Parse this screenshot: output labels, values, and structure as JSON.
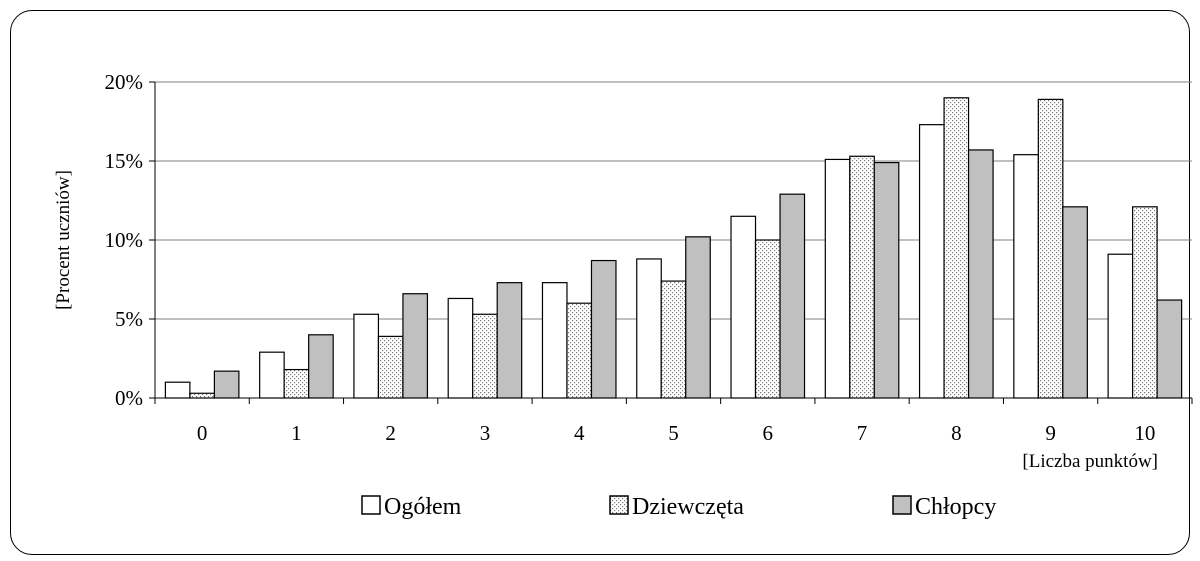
{
  "chart_data": {
    "type": "bar",
    "title": "",
    "xlabel": "[Liczba punktów]",
    "ylabel": "[Procent uczniów]",
    "categories": [
      "0",
      "1",
      "2",
      "3",
      "4",
      "5",
      "6",
      "7",
      "8",
      "9",
      "10"
    ],
    "ylim": [
      0,
      20
    ],
    "yticks": [
      0,
      5,
      10,
      15,
      20
    ],
    "ytick_labels": [
      "0%",
      "5%",
      "10%",
      "15%",
      "20%"
    ],
    "grid": true,
    "legend_position": "bottom",
    "series": [
      {
        "name": "Ogółem",
        "values": [
          1.0,
          2.9,
          5.3,
          6.3,
          7.3,
          8.8,
          11.5,
          15.1,
          17.3,
          15.4,
          9.1
        ],
        "fill": "white"
      },
      {
        "name": "Dziewczęta",
        "values": [
          0.3,
          1.8,
          3.9,
          5.3,
          6.0,
          7.4,
          10.0,
          15.3,
          19.0,
          18.9,
          12.1
        ],
        "fill": "dotted"
      },
      {
        "name": "Chłopcy",
        "values": [
          1.7,
          4.0,
          6.6,
          7.3,
          8.7,
          10.2,
          12.9,
          14.9,
          15.7,
          12.1,
          6.2
        ],
        "fill": "gray"
      }
    ],
    "colors": {
      "white": "#ffffff",
      "dotted": "#e6e6e6",
      "gray": "#c0c0c0",
      "stroke": "#000000",
      "grid": "#808080"
    }
  }
}
